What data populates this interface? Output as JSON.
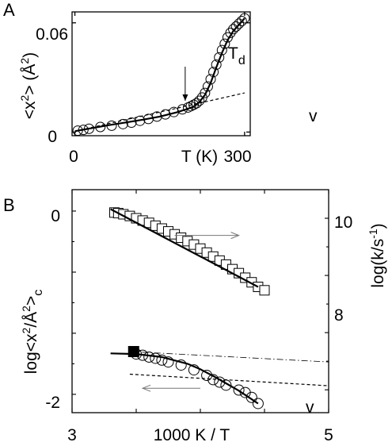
{
  "chart_data": [
    {
      "panel": "A",
      "type": "scatter",
      "xlabel": "T (K)",
      "ylabel": "<x²> (Å²)",
      "xticks": [
        "0",
        "300"
      ],
      "yticks": [
        "0",
        "0.06"
      ],
      "xlim": [
        -5,
        310
      ],
      "ylim": [
        -0.002,
        0.066
      ],
      "series": [
        {
          "marker": "open-circle",
          "x": [
            5,
            15,
            25,
            45,
            65,
            85,
            100,
            115,
            130,
            145,
            160,
            175,
            190,
            200,
            205,
            210,
            215,
            220,
            225,
            230,
            235,
            240,
            245,
            250,
            255,
            260,
            265,
            270,
            275,
            280,
            285,
            290,
            295,
            300
          ],
          "y": [
            0.0008,
            0.0012,
            0.0018,
            0.0028,
            0.0035,
            0.0044,
            0.0052,
            0.0062,
            0.0072,
            0.0085,
            0.0097,
            0.011,
            0.0125,
            0.0135,
            0.0142,
            0.015,
            0.0158,
            0.0172,
            0.019,
            0.0215,
            0.025,
            0.029,
            0.033,
            0.037,
            0.041,
            0.045,
            0.0485,
            0.052,
            0.0545,
            0.0565,
            0.058,
            0.0595,
            0.061,
            0.0625
          ]
        },
        {
          "style": "solid-fit",
          "x": [
            0,
            30,
            60,
            90,
            120,
            150,
            180,
            200,
            210,
            220,
            230,
            240,
            250,
            260,
            270,
            280,
            290,
            300
          ],
          "y": [
            0.0005,
            0.0022,
            0.0038,
            0.0053,
            0.0068,
            0.0085,
            0.0108,
            0.0128,
            0.014,
            0.0165,
            0.0205,
            0.027,
            0.0355,
            0.0435,
            0.0505,
            0.0555,
            0.059,
            0.0625
          ]
        },
        {
          "style": "dashed",
          "x": [
            0,
            300
          ],
          "y": [
            0.0005,
            0.0215
          ]
        }
      ],
      "annotations": [
        {
          "text": "T",
          "subscript": "d",
          "arrow_to": [
            195,
            0.0128
          ]
        },
        {
          "text": "v",
          "at": [
            295,
            0.0235
          ]
        }
      ]
    },
    {
      "panel": "B",
      "type": "scatter",
      "xlabel": "1000 K / T",
      "ylabel": "log<x²/Å²>c",
      "y2label": "log(k/s⁻¹)",
      "xticks": [
        "3",
        "5"
      ],
      "yticks": [
        "-2",
        "0"
      ],
      "y2ticks": [
        "8",
        "10"
      ],
      "xlim": [
        3,
        5
      ],
      "ylim": [
        -2.3,
        1.35
      ],
      "y2lim": [
        6.6,
        10.5
      ],
      "series": [
        {
          "name_axis": "right",
          "marker": "open-square",
          "x": [
            3.33,
            3.36,
            3.4,
            3.45,
            3.5,
            3.55,
            3.6,
            3.65,
            3.7,
            3.75,
            3.8,
            3.85,
            3.9,
            3.95,
            4.0,
            4.05,
            4.1,
            4.15,
            4.2,
            4.25,
            4.3,
            4.35,
            4.4,
            4.45,
            4.5
          ],
          "y": [
            10.1,
            10.09,
            10.07,
            10.04,
            10.0,
            9.96,
            9.92,
            9.87,
            9.82,
            9.77,
            9.72,
            9.66,
            9.6,
            9.54,
            9.47,
            9.4,
            9.33,
            9.26,
            9.19,
            9.11,
            9.04,
            8.96,
            8.88,
            8.8,
            8.74
          ]
        },
        {
          "name_axis": "right",
          "style": "solid-fit",
          "x": [
            3.3,
            4.45
          ],
          "y": [
            10.16,
            8.8
          ]
        },
        {
          "marker": "open-circle",
          "x": [
            3.5,
            3.55,
            3.6,
            3.65,
            3.7,
            3.75,
            3.85,
            3.95,
            4.05,
            4.1,
            4.15,
            4.2,
            4.3,
            4.35,
            4.4,
            4.45
          ],
          "y": [
            -1.34,
            -1.36,
            -1.39,
            -1.41,
            -1.44,
            -1.47,
            -1.52,
            -1.6,
            -1.69,
            -1.76,
            -1.8,
            -1.85,
            -1.93,
            -1.97,
            -2.05,
            -2.15
          ]
        },
        {
          "marker": "filled-square",
          "x": [
            3.48
          ],
          "y": [
            -1.3
          ]
        },
        {
          "style": "solid-fit",
          "x": [
            3.3,
            3.5,
            3.7,
            3.9,
            4.0,
            4.1,
            4.2,
            4.3,
            4.4,
            4.45
          ],
          "y": [
            -1.33,
            -1.34,
            -1.39,
            -1.5,
            -1.59,
            -1.7,
            -1.82,
            -1.94,
            -2.08,
            -2.15
          ]
        },
        {
          "style": "dash-dot",
          "x": [
            3.45,
            5.0
          ],
          "y": [
            -1.3,
            -1.47
          ]
        },
        {
          "style": "dashed",
          "x": [
            3.45,
            5.0
          ],
          "y": [
            -1.67,
            -1.86
          ]
        }
      ],
      "annotations": [
        {
          "arrow": "right",
          "from": [
            3.8,
            9.7
          ],
          "to": [
            4.3,
            9.7
          ]
        },
        {
          "arrow": "left",
          "from": [
            4.0,
            -1.9
          ],
          "to": [
            3.55,
            -1.9
          ]
        },
        {
          "text": "v",
          "at": [
            4.7,
            -2.03
          ]
        }
      ]
    }
  ],
  "labels": {
    "panelA": "A",
    "panelB": "B",
    "td_main": "T",
    "td_sub": "d",
    "vA": "v",
    "vB": "v",
    "a_xlabel": "T (K)",
    "a_ytick_hi": "0.06",
    "a_ytick_lo": "0",
    "a_xtick_lo": "0",
    "a_xtick_hi": "300",
    "b_xlabel": "1000 K / T",
    "b_xtick_lo": "3",
    "b_xtick_hi": "5",
    "b_ytick_0": "0",
    "b_ytick_m2": "-2",
    "b_y2tick_10": "10",
    "b_y2tick_8": "8",
    "a_ylabel_main": "<x",
    "a_ylabel_sup": "2",
    "a_ylabel_mid": "> (Å",
    "a_ylabel_sup2": "2",
    "a_ylabel_end": ")",
    "b_ylabel_main": "log<x",
    "b_ylabel_sup": "2",
    "b_ylabel_mid": "/Å",
    "b_ylabel_sup2": "2",
    "b_ylabel_end": ">",
    "b_ylabel_sub": "c",
    "b_y2label_main": "log(k/s",
    "b_y2label_sup": "-1",
    "b_y2label_end": ")"
  }
}
